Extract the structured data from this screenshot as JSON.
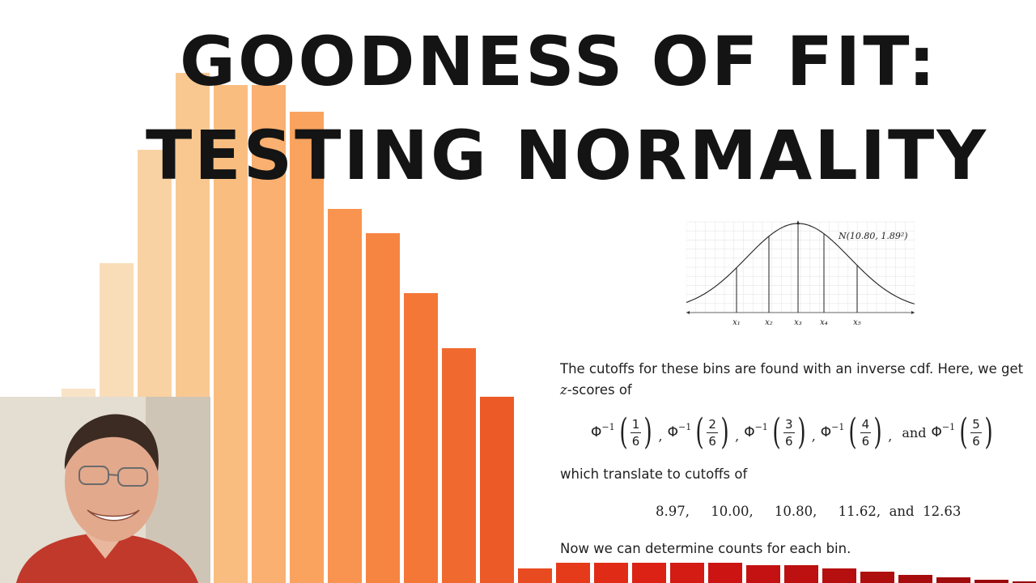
{
  "title": {
    "line1": "GOODNESS OF FIT:",
    "line2": "TESTING NORMALITY"
  },
  "background_histogram": {
    "colors": [
      "#f9e3c6",
      "#f9ddb9",
      "#f9d2a3",
      "#f9c891",
      "#f9bd80",
      "#f9b070",
      "#f9a35e",
      "#f99450",
      "#f78542",
      "#f57738",
      "#f06a2f",
      "#ec5a28",
      "#e94b21",
      "#e53b1b",
      "#e02c17",
      "#dc2115",
      "#d41b14",
      "#cc1513",
      "#c41212",
      "#bd1010",
      "#b60f0f",
      "#af0e0e",
      "#a80d0d",
      "#a10c0c",
      "#9b0b0b",
      "#950b0b"
    ],
    "values": [
      240,
      395,
      535,
      630,
      615,
      615,
      582,
      462,
      432,
      358,
      290,
      230,
      18,
      25,
      25,
      25,
      25,
      25,
      22,
      22,
      18,
      14,
      10,
      7,
      4,
      2
    ]
  },
  "curve": {
    "label": "N(10.80, 1.89²)",
    "cutoff_labels": [
      "x₁",
      "x₂",
      "x₃",
      "x₄",
      "x₅"
    ]
  },
  "slide": {
    "para1_line1": "The cutoffs for these bins are found with an inverse cdf.  Here, we get",
    "para1_line2_var": "z",
    "para1_line2_rest": "-scores of",
    "phi_symbol": "Φ",
    "phi_exponent": "−1",
    "fractions": [
      {
        "num": "1",
        "den": "6"
      },
      {
        "num": "2",
        "den": "6"
      },
      {
        "num": "3",
        "den": "6"
      },
      {
        "num": "4",
        "den": "6"
      },
      {
        "num": "5",
        "den": "6"
      }
    ],
    "and_word": "and",
    "para2": "which translate to cutoffs of",
    "cutoffs": "8.97,     10.00,     10.80,     11.62,  and  12.63",
    "para3": "Now we can determine counts for each bin."
  }
}
